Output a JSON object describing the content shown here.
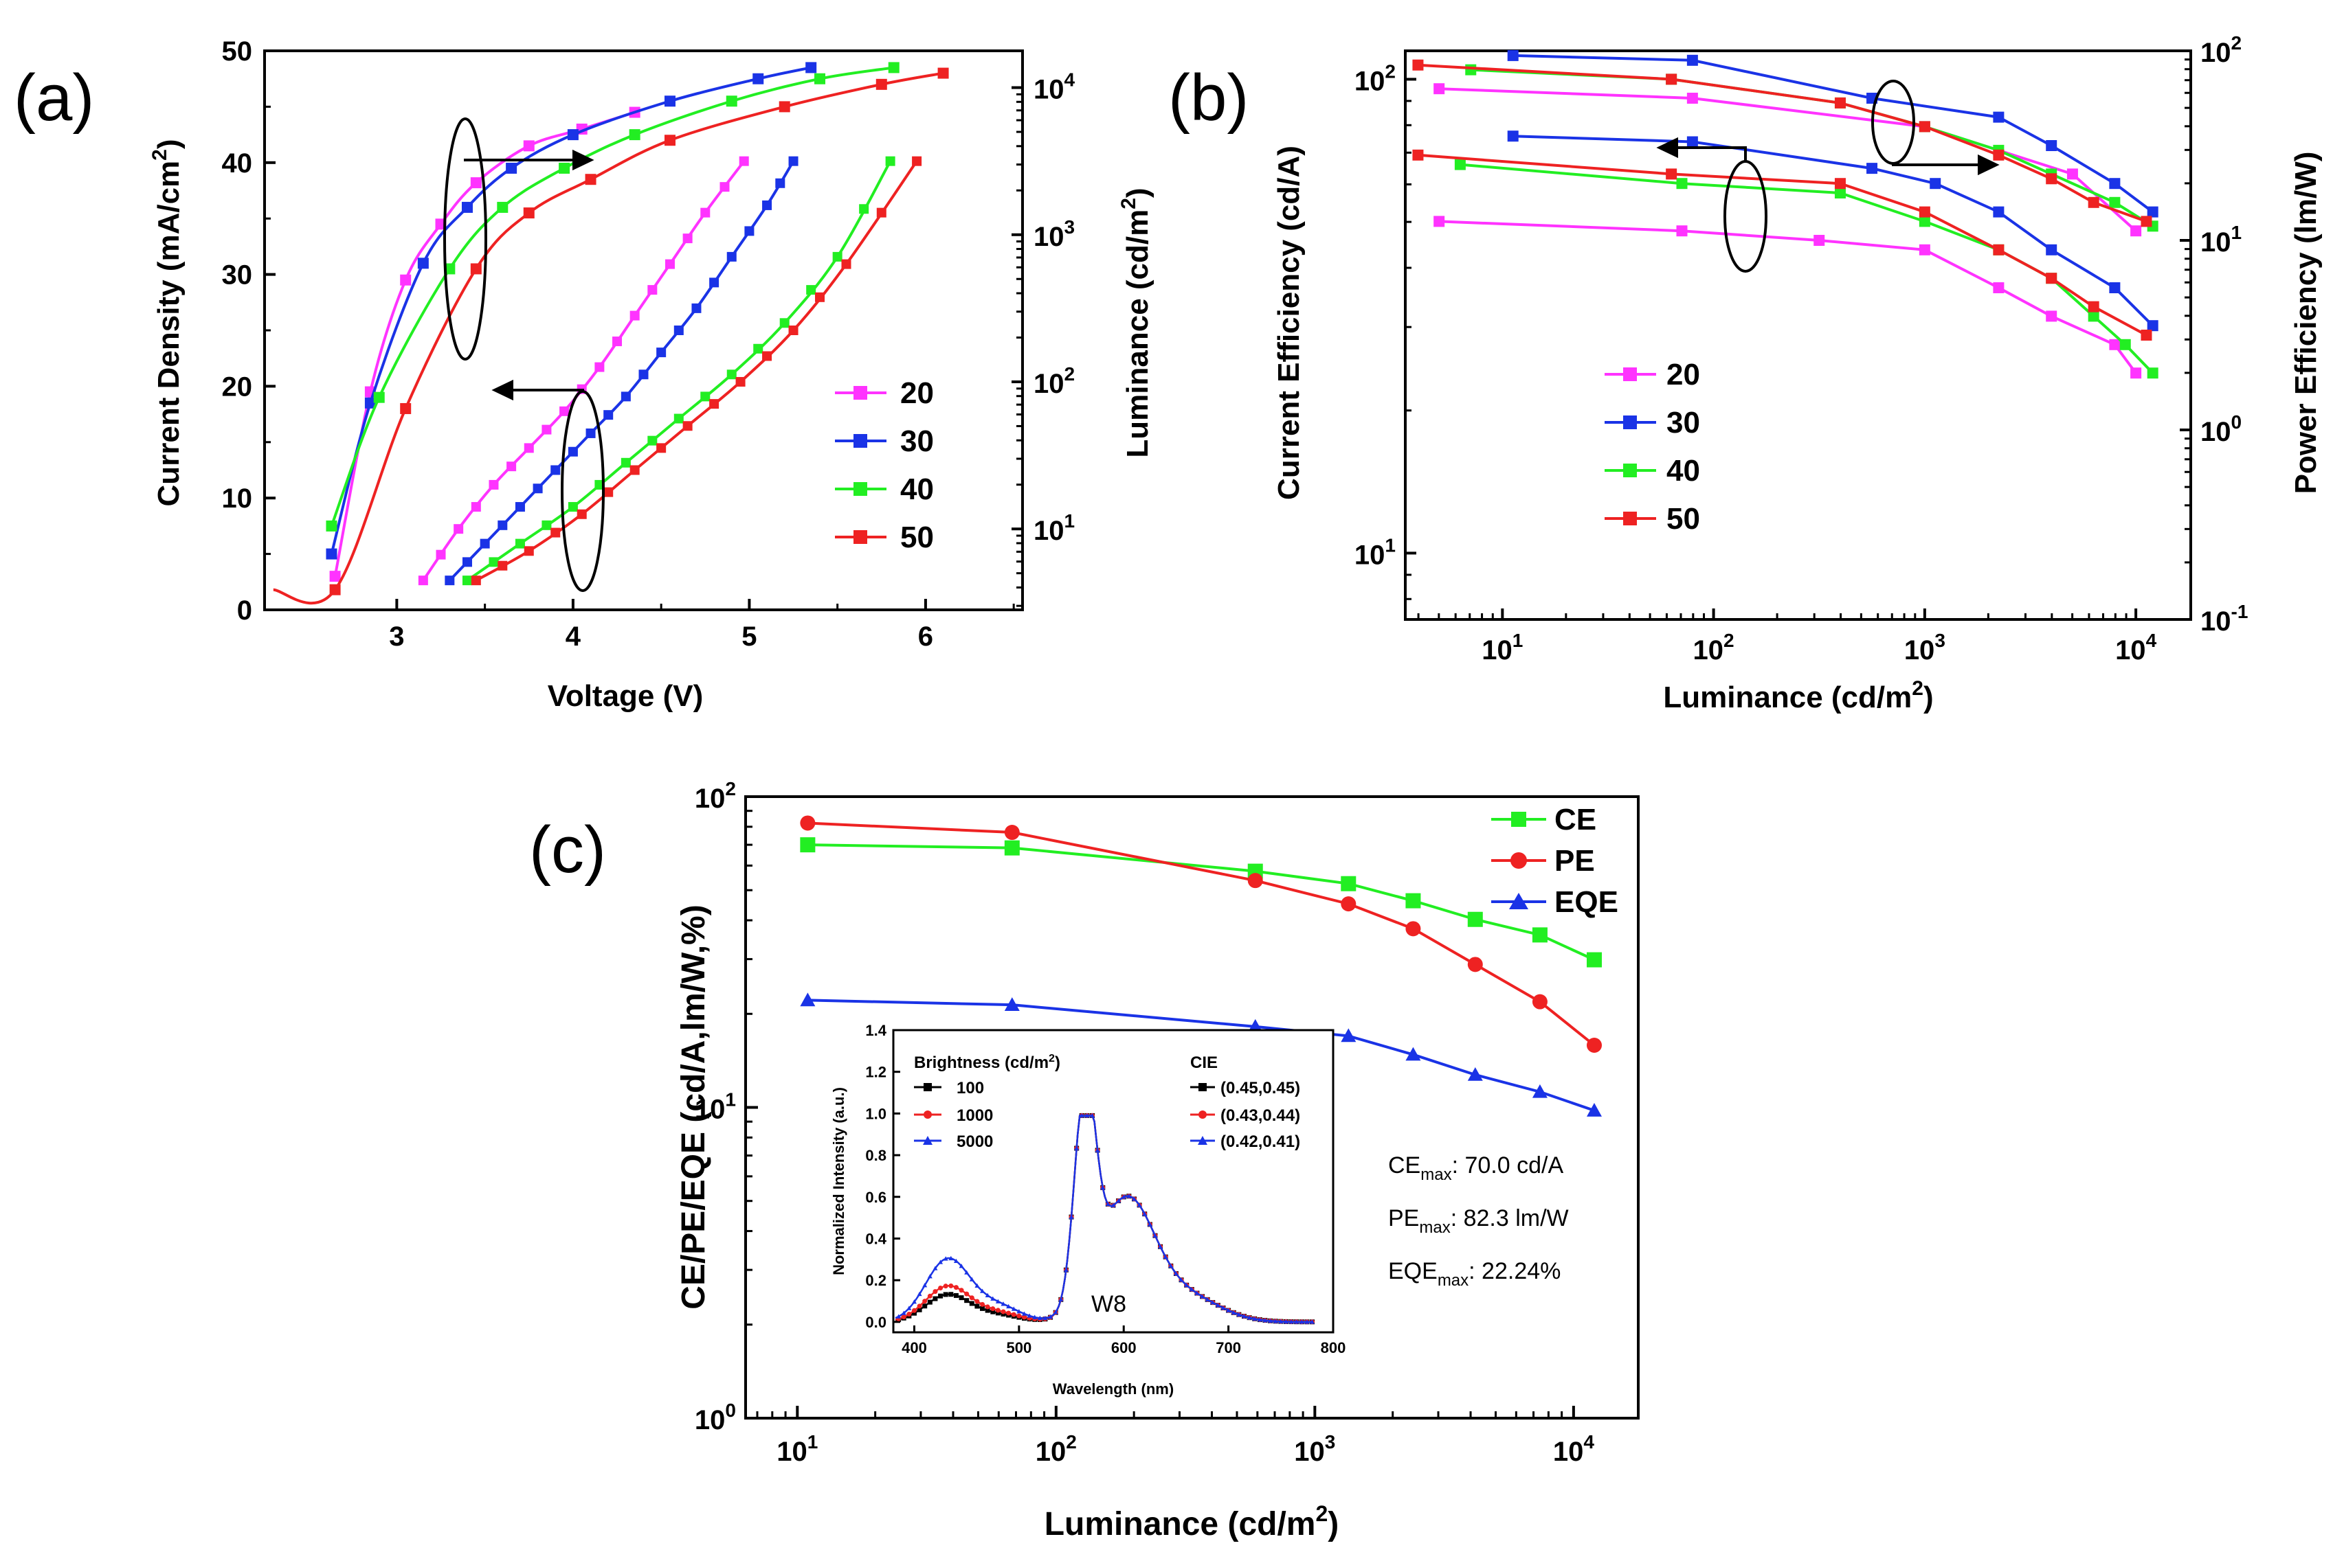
{
  "chart_data": [
    {
      "id": "a",
      "panel_label": "(a)",
      "type": "line",
      "xlabel": "Voltage (V)",
      "ylabel": "Current Density (mA/cm",
      "ylabel_sup": "2",
      "ylabel_end": ")",
      "y2label": "Luminance (cd/m",
      "y2label_sup": "2",
      "y2label_end": ")",
      "xlim": [
        2.25,
        6.55
      ],
      "ylim": [
        0,
        50
      ],
      "y2lim_log": [
        0.45,
        4.25
      ],
      "x_ticks": [
        3,
        4,
        5,
        6
      ],
      "y_ticks": [
        0,
        10,
        20,
        30,
        40,
        50
      ],
      "y2_ticks": [
        {
          "base": "10",
          "exp": "1",
          "v": 1
        },
        {
          "base": "10",
          "exp": "2",
          "v": 2
        },
        {
          "base": "10",
          "exp": "3",
          "v": 3
        },
        {
          "base": "10",
          "exp": "4",
          "v": 4
        }
      ],
      "legend": [
        "20",
        "30",
        "40",
        "50"
      ],
      "series": [
        {
          "name": "20",
          "color": "#ff33ff",
          "axis": "y",
          "x": [
            2.65,
            2.85,
            3.05,
            3.25,
            3.45,
            3.75,
            4.05,
            4.35
          ],
          "y": [
            3,
            19.5,
            29.5,
            34.5,
            38.2,
            41.5,
            43,
            44.5
          ]
        },
        {
          "name": "30",
          "color": "#1a33e6",
          "axis": "y",
          "x": [
            2.63,
            2.85,
            3.15,
            3.4,
            3.65,
            4.0,
            4.55,
            5.05,
            5.35
          ],
          "y": [
            5,
            18.5,
            31,
            36,
            39.5,
            42.5,
            45.5,
            47.5,
            48.5
          ]
        },
        {
          "name": "40",
          "color": "#22ee22",
          "axis": "y",
          "x": [
            2.63,
            2.9,
            3.3,
            3.6,
            3.95,
            4.35,
            4.9,
            5.4,
            5.82
          ],
          "y": [
            7.5,
            19,
            30.5,
            36,
            39.5,
            42.5,
            45.5,
            47.5,
            48.5
          ]
        },
        {
          "name": "50",
          "color": "#ee2222",
          "axis": "y",
          "x": [
            2.3,
            2.65,
            3.05,
            3.45,
            3.75,
            4.1,
            4.55,
            5.2,
            5.75,
            6.1
          ],
          "y": [
            1.8,
            1.8,
            18,
            30.5,
            35.5,
            38.5,
            42,
            45,
            47,
            48
          ]
        },
        {
          "name": "20",
          "color": "#ff33ff",
          "axis": "y2",
          "x": [
            3.15,
            3.35,
            3.55,
            3.75,
            3.95,
            4.15,
            4.35,
            4.55,
            4.75,
            4.97
          ],
          "log10y": [
            0.65,
            1.0,
            1.3,
            1.55,
            1.8,
            2.1,
            2.45,
            2.8,
            3.15,
            3.5
          ]
        },
        {
          "name": "30",
          "color": "#1a33e6",
          "axis": "y2",
          "x": [
            3.3,
            3.5,
            3.7,
            3.9,
            4.1,
            4.3,
            4.5,
            4.7,
            4.9,
            5.1,
            5.25
          ],
          "log10y": [
            0.65,
            0.9,
            1.15,
            1.4,
            1.65,
            1.9,
            2.2,
            2.5,
            2.85,
            3.2,
            3.5
          ]
        },
        {
          "name": "40",
          "color": "#22ee22",
          "axis": "y2",
          "x": [
            3.4,
            3.7,
            4.0,
            4.3,
            4.6,
            4.9,
            5.2,
            5.5,
            5.8
          ],
          "log10y": [
            0.65,
            0.9,
            1.15,
            1.45,
            1.75,
            2.05,
            2.4,
            2.85,
            3.5
          ]
        },
        {
          "name": "50",
          "color": "#ee2222",
          "axis": "y2",
          "x": [
            3.45,
            3.75,
            4.05,
            4.35,
            4.65,
            4.95,
            5.25,
            5.55,
            5.95
          ],
          "log10y": [
            0.65,
            0.85,
            1.1,
            1.4,
            1.7,
            2.0,
            2.35,
            2.8,
            3.5
          ]
        }
      ]
    },
    {
      "id": "b",
      "panel_label": "(b)",
      "type": "line",
      "xlabel": "Luminance (cd/m",
      "xlabel_sup": "2",
      "xlabel_end": ")",
      "ylabel": "Current Efficiency  (cd/A)",
      "y2label": "Power Efficiency (lm/W)",
      "xlim_log": [
        0.54,
        4.26
      ],
      "ylim_log": [
        0.86,
        2.06
      ],
      "y2lim_log": [
        -1.0,
        2.0
      ],
      "x_ticks": [
        {
          "base": "10",
          "exp": "1",
          "v": 1
        },
        {
          "base": "10",
          "exp": "2",
          "v": 2
        },
        {
          "base": "10",
          "exp": "3",
          "v": 3
        },
        {
          "base": "10",
          "exp": "4",
          "v": 4
        }
      ],
      "y_ticks": [
        {
          "base": "10",
          "exp": "1",
          "v": 1
        },
        {
          "base": "10",
          "exp": "2",
          "v": 2
        }
      ],
      "y2_ticks": [
        {
          "base": "10",
          "exp": "-1",
          "v": -1
        },
        {
          "base": "10",
          "exp": "0",
          "v": 0
        },
        {
          "base": "10",
          "exp": "1",
          "v": 1
        },
        {
          "base": "10",
          "exp": "2",
          "v": 2
        }
      ],
      "legend": [
        "20",
        "30",
        "40",
        "50"
      ],
      "series": [
        {
          "name": "20",
          "color": "#ff33ff",
          "axis": "y",
          "log10x": [
            0.7,
            1.9,
            3.0,
            3.7,
            4.0
          ],
          "log10y": [
            1.98,
            1.96,
            1.9,
            1.8,
            1.68
          ]
        },
        {
          "name": "30",
          "color": "#1a33e6",
          "axis": "y",
          "log10x": [
            1.05,
            1.9,
            2.75,
            3.35,
            3.6,
            3.9,
            4.08
          ],
          "log10y": [
            2.05,
            2.04,
            1.96,
            1.92,
            1.86,
            1.78,
            1.72
          ]
        },
        {
          "name": "40",
          "color": "#22ee22",
          "axis": "y",
          "log10x": [
            0.85,
            1.8,
            2.6,
            3.0,
            3.35,
            3.6,
            3.9,
            4.08
          ],
          "log10y": [
            2.02,
            2.0,
            1.95,
            1.9,
            1.85,
            1.8,
            1.74,
            1.69
          ]
        },
        {
          "name": "50",
          "color": "#ee2222",
          "axis": "y",
          "log10x": [
            0.6,
            1.8,
            2.6,
            3.0,
            3.35,
            3.6,
            3.8,
            4.05
          ],
          "log10y": [
            2.03,
            2.0,
            1.95,
            1.9,
            1.84,
            1.79,
            1.74,
            1.7
          ]
        },
        {
          "name": "20",
          "color": "#ff33ff",
          "axis": "y2",
          "log10x": [
            0.7,
            1.85,
            2.5,
            3.0,
            3.35,
            3.6,
            3.9,
            4.0
          ],
          "log10y": [
            1.1,
            1.05,
            1.0,
            0.95,
            0.75,
            0.6,
            0.45,
            0.3
          ]
        },
        {
          "name": "30",
          "color": "#1a33e6",
          "axis": "y2",
          "log10x": [
            1.05,
            1.9,
            2.75,
            3.05,
            3.35,
            3.6,
            3.9,
            4.08
          ],
          "log10y": [
            1.55,
            1.52,
            1.38,
            1.3,
            1.15,
            0.95,
            0.75,
            0.55
          ]
        },
        {
          "name": "40",
          "color": "#22ee22",
          "axis": "y2",
          "log10x": [
            0.8,
            1.85,
            2.6,
            3.0,
            3.35,
            3.6,
            3.8,
            3.95,
            4.08
          ],
          "log10y": [
            1.4,
            1.3,
            1.25,
            1.1,
            0.95,
            0.8,
            0.6,
            0.45,
            0.3
          ]
        },
        {
          "name": "50",
          "color": "#ee2222",
          "axis": "y2",
          "log10x": [
            0.6,
            1.8,
            2.6,
            3.0,
            3.35,
            3.6,
            3.8,
            4.05
          ],
          "log10y": [
            1.45,
            1.35,
            1.3,
            1.15,
            0.95,
            0.8,
            0.65,
            0.5
          ]
        }
      ]
    },
    {
      "id": "c",
      "panel_label": "(c)",
      "type": "line",
      "xlabel": "Luminance (cd/m",
      "xlabel_sup": "2",
      "xlabel_end": ")",
      "ylabel": "CE/PE/EQE (cd/A,lm/W,%)",
      "xlim_log": [
        0.8,
        4.25
      ],
      "ylim_log": [
        0,
        2
      ],
      "x_ticks": [
        {
          "base": "10",
          "exp": "1",
          "v": 1
        },
        {
          "base": "10",
          "exp": "2",
          "v": 2
        },
        {
          "base": "10",
          "exp": "3",
          "v": 3
        },
        {
          "base": "10",
          "exp": "4",
          "v": 4
        }
      ],
      "y_ticks": [
        {
          "base": "10",
          "exp": "0",
          "v": 0
        },
        {
          "base": "10",
          "exp": "1",
          "v": 1
        },
        {
          "base": "10",
          "exp": "2",
          "v": 2
        }
      ],
      "legend": [
        "CE",
        "PE",
        "EQE"
      ],
      "series": [
        {
          "name": "CE",
          "color": "#22ee22",
          "marker": "square",
          "log10x": [
            1.04,
            1.83,
            2.77,
            3.13,
            3.38,
            3.62,
            3.87,
            4.08
          ],
          "log10y": [
            1.845,
            1.835,
            1.76,
            1.72,
            1.665,
            1.605,
            1.555,
            1.475
          ]
        },
        {
          "name": "PE",
          "color": "#ee2222",
          "marker": "circle",
          "log10x": [
            1.04,
            1.83,
            2.77,
            3.13,
            3.38,
            3.62,
            3.87,
            4.08
          ],
          "log10y": [
            1.915,
            1.885,
            1.73,
            1.655,
            1.575,
            1.46,
            1.34,
            1.2
          ]
        },
        {
          "name": "EQE",
          "color": "#1a33e6",
          "marker": "triangle",
          "log10x": [
            1.04,
            1.83,
            2.77,
            3.13,
            3.38,
            3.62,
            3.87,
            4.08
          ],
          "log10y": [
            1.345,
            1.33,
            1.26,
            1.23,
            1.17,
            1.105,
            1.05,
            0.99
          ]
        }
      ],
      "annotations": [
        {
          "main": "CE",
          "sub": "max",
          "rest": ": 70.0 cd/A"
        },
        {
          "main": "PE",
          "sub": "max",
          "rest": ": 82.3 lm/W"
        },
        {
          "main": "EQE",
          "sub": "max",
          "rest": ": 22.24%"
        }
      ],
      "inset": {
        "type": "line",
        "xlabel": "Wavelength (nm)",
        "ylabel": "Normalized Intensity (a.u.)",
        "xlim": [
          380,
          800
        ],
        "ylim": [
          -0.05,
          1.4
        ],
        "x_ticks": [
          400,
          500,
          600,
          700,
          800
        ],
        "y_ticks": [
          "0.0",
          "0.2",
          "0.4",
          "0.6",
          "0.8",
          "1.0",
          "1.2",
          "1.4"
        ],
        "legend_title_1": "Brightness (cd/m",
        "legend_title_1_sup": "2",
        "legend_title_1_end": ")",
        "legend_title_2": "CIE",
        "legend_1": [
          "100",
          "1000",
          "5000"
        ],
        "legend_2": [
          "(0.45,0.45)",
          "(0.43,0.44)",
          "(0.42,0.41)"
        ],
        "label": "W8",
        "series": [
          {
            "name": "100",
            "color": "#000000",
            "blue_peak": 0.13
          },
          {
            "name": "1000",
            "color": "#ee2222",
            "blue_peak": 0.17
          },
          {
            "name": "5000",
            "color": "#1a33e6",
            "blue_peak": 0.3
          }
        ]
      }
    }
  ]
}
